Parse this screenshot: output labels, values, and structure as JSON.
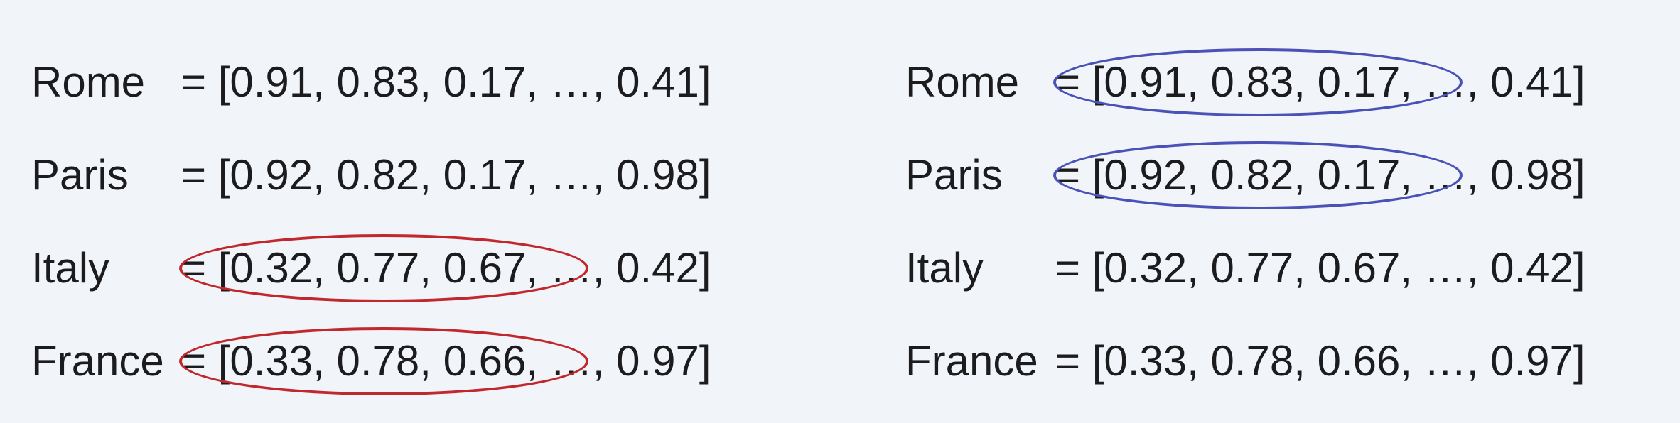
{
  "panels": [
    {
      "rows": [
        {
          "word": "Rome",
          "vector": "= [0.91, 0.83, 0.17, …, 0.41]",
          "highlight": null
        },
        {
          "word": "Paris",
          "vector": "= [0.92, 0.82, 0.17, …, 0.98]",
          "highlight": null
        },
        {
          "word": "Italy",
          "vector": "= [0.32, 0.77, 0.67, …, 0.42]",
          "highlight": "red"
        },
        {
          "word": "France",
          "vector": "= [0.33, 0.78, 0.66, …, 0.97]",
          "highlight": "red"
        }
      ]
    },
    {
      "rows": [
        {
          "word": "Rome",
          "vector": "= [0.91, 0.83, 0.17, …, 0.41]",
          "highlight": "blue"
        },
        {
          "word": "Paris",
          "vector": "= [0.92, 0.82, 0.17, …, 0.98]",
          "highlight": "blue"
        },
        {
          "word": "Italy",
          "vector": "= [0.32, 0.77, 0.67, …, 0.42]",
          "highlight": null
        },
        {
          "word": "France",
          "vector": "= [0.33, 0.78, 0.66, …, 0.97]",
          "highlight": null
        }
      ]
    }
  ],
  "colors": {
    "background": "#f1f4f8",
    "text": "#1c1c1e",
    "red": "#c0282e",
    "blue": "#4a52b8"
  }
}
